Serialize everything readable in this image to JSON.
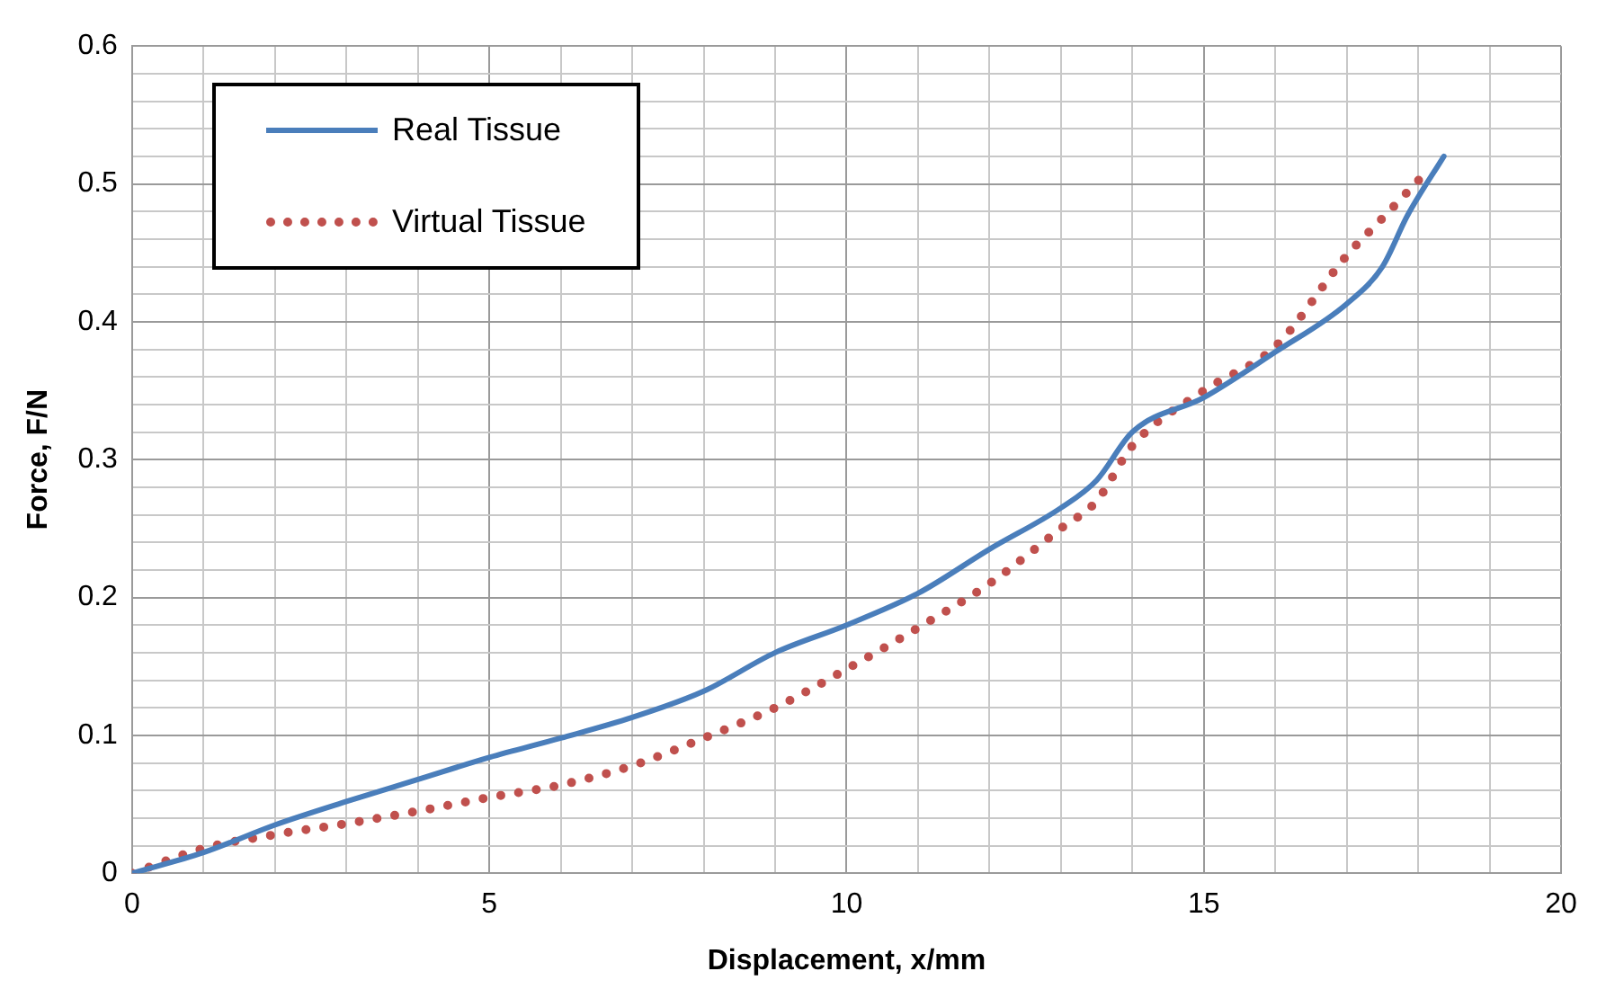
{
  "chart_data": {
    "type": "line",
    "xlabel": "Displacement, x/mm",
    "ylabel": "Force, F/N",
    "xlim": [
      0,
      20
    ],
    "ylim": [
      0,
      0.6
    ],
    "xticks": [
      0,
      {
        "value": 1,
        "label": null
      },
      {
        "value": 2,
        "label": null
      },
      {
        "value": 3,
        "label": null
      },
      {
        "value": 4,
        "label": null
      },
      5,
      {
        "value": 6,
        "label": null
      },
      {
        "value": 7,
        "label": null
      },
      {
        "value": 8,
        "label": null
      },
      {
        "value": 9,
        "label": null
      },
      10,
      {
        "value": 11,
        "label": null
      },
      {
        "value": 12,
        "label": null
      },
      {
        "value": 13,
        "label": null
      },
      {
        "value": 14,
        "label": null
      },
      15,
      {
        "value": 16,
        "label": null
      },
      {
        "value": 17,
        "label": null
      },
      {
        "value": 18,
        "label": null
      },
      {
        "value": 19,
        "label": null
      },
      20
    ],
    "yticks": [
      0,
      {
        "value": 0.02,
        "label": null
      },
      {
        "value": 0.04,
        "label": null
      },
      {
        "value": 0.06,
        "label": null
      },
      {
        "value": 0.08,
        "label": null
      },
      0.1,
      {
        "value": 0.12,
        "label": null
      },
      {
        "value": 0.14,
        "label": null
      },
      {
        "value": 0.16,
        "label": null
      },
      {
        "value": 0.18,
        "label": null
      },
      0.2,
      {
        "value": 0.22,
        "label": null
      },
      {
        "value": 0.24,
        "label": null
      },
      {
        "value": 0.26,
        "label": null
      },
      {
        "value": 0.28,
        "label": null
      },
      0.3,
      {
        "value": 0.32,
        "label": null
      },
      {
        "value": 0.34,
        "label": null
      },
      {
        "value": 0.36,
        "label": null
      },
      {
        "value": 0.38,
        "label": null
      },
      0.4,
      {
        "value": 0.42,
        "label": null
      },
      {
        "value": 0.44,
        "label": null
      },
      {
        "value": 0.46,
        "label": null
      },
      {
        "value": 0.48,
        "label": null
      },
      0.5,
      {
        "value": 0.52,
        "label": null
      },
      {
        "value": 0.54,
        "label": null
      },
      {
        "value": 0.56,
        "label": null
      },
      {
        "value": 0.58,
        "label": null
      },
      0.6
    ],
    "grid": true,
    "legend": "top left",
    "marker": "none",
    "series": [
      {
        "name": "Real Tissue",
        "color": "#4a7ebb",
        "line_style": "solid",
        "x": [
          0,
          1,
          2,
          3,
          4,
          5,
          6,
          7,
          8,
          9,
          10,
          11,
          12,
          13,
          13.5,
          14,
          15,
          16,
          17,
          17.5,
          17.85,
          18.36
        ],
        "values": [
          0,
          0.015,
          0.035,
          0.052,
          0.068,
          0.084,
          0.098,
          0.113,
          0.132,
          0.16,
          0.18,
          0.203,
          0.235,
          0.265,
          0.285,
          0.32,
          0.345,
          0.378,
          0.413,
          0.44,
          0.477,
          0.52
        ]
      },
      {
        "name": "Virtual Tissue",
        "color": "#c0504d",
        "line_style": "dotted",
        "x": [
          0,
          1,
          2,
          3,
          4,
          5,
          6,
          7,
          8,
          9,
          10,
          11,
          12,
          13,
          13.5,
          14,
          15,
          16,
          17,
          17.5,
          18.05
        ],
        "values": [
          0,
          0.018,
          0.028,
          0.036,
          0.045,
          0.055,
          0.064,
          0.078,
          0.098,
          0.12,
          0.148,
          0.178,
          0.21,
          0.25,
          0.27,
          0.31,
          0.35,
          0.382,
          0.448,
          0.475,
          0.505
        ]
      }
    ]
  }
}
